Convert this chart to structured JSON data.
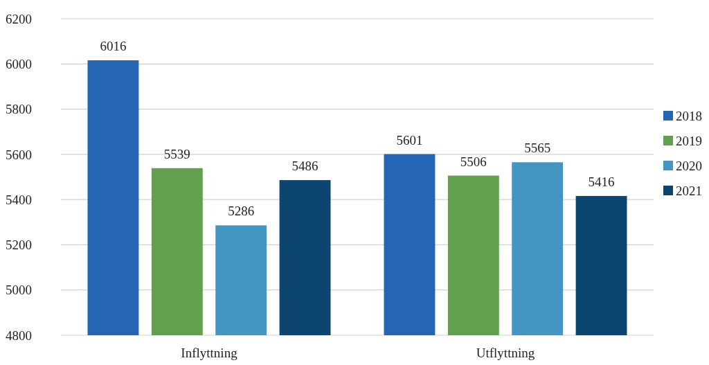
{
  "chart_data": {
    "type": "bar",
    "categories": [
      "Inflyttning",
      "Utflyttning"
    ],
    "series": [
      {
        "name": "2018",
        "color": "#2466b3",
        "values": [
          6016,
          5601
        ]
      },
      {
        "name": "2019",
        "color": "#62a04f",
        "values": [
          5539,
          5506
        ]
      },
      {
        "name": "2020",
        "color": "#4496c2",
        "values": [
          5286,
          5565
        ]
      },
      {
        "name": "2021",
        "color": "#0d4571",
        "values": [
          5486,
          5416
        ]
      }
    ],
    "ylim": [
      4800,
      6200
    ],
    "yticks": [
      4800,
      5000,
      5200,
      5400,
      5600,
      5800,
      6000,
      6200
    ],
    "grid": "y",
    "legend": "right",
    "data_labels": true
  }
}
